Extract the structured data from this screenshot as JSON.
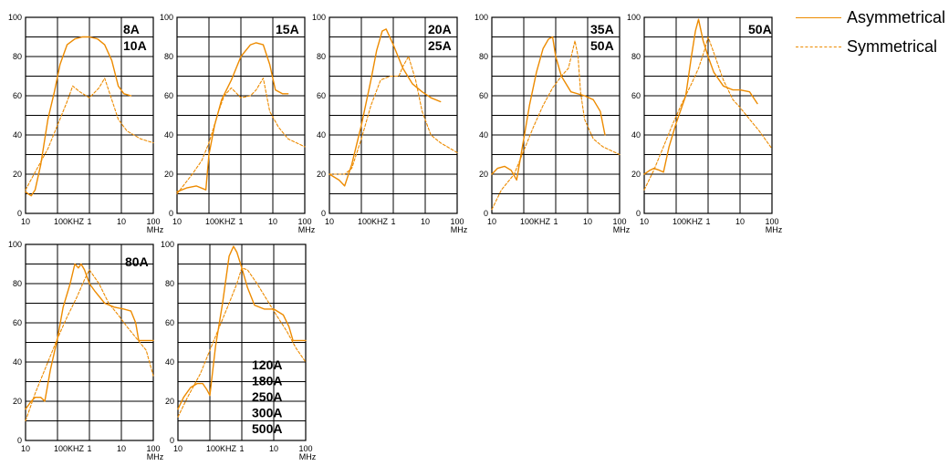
{
  "colors": {
    "asymmetrical": "#ED8B00",
    "symmetrical": "#ED8B00",
    "grid": "#000000"
  },
  "legend": {
    "asymmetrical_label": "Asymmetrical",
    "symmetrical_label": "Symmetrical"
  },
  "chart_data": [
    {
      "type": "line",
      "title": "",
      "labels": [
        "8A",
        "10A"
      ],
      "x_scale": "log",
      "x_ticks": [
        "10",
        "100KHZ",
        "1",
        "10",
        "100"
      ],
      "x_unit": "MHz",
      "y_ticks": [
        "0",
        "20",
        "40",
        "60",
        "80",
        "100"
      ],
      "ylim": [
        0,
        100
      ],
      "grid": true,
      "series": [
        {
          "name": "Asymmetrical",
          "style": "solid",
          "x": [
            0.01,
            0.012,
            0.015,
            0.02,
            0.03,
            0.05,
            0.08,
            0.12,
            0.2,
            0.35,
            0.6,
            1,
            1.8,
            3,
            5,
            8,
            12,
            20
          ],
          "y": [
            11,
            10,
            9,
            12,
            25,
            48,
            62,
            76,
            86,
            89,
            90,
            90,
            89,
            86,
            78,
            65,
            61,
            60
          ]
        },
        {
          "name": "Symmetrical",
          "style": "dashed",
          "x": [
            0.01,
            0.02,
            0.05,
            0.1,
            0.2,
            0.3,
            0.5,
            1,
            2,
            3,
            5,
            8,
            15,
            40,
            100
          ],
          "y": [
            12,
            21,
            33,
            45,
            57,
            65,
            62,
            59,
            64,
            69,
            58,
            48,
            42,
            38,
            36
          ]
        }
      ]
    },
    {
      "type": "line",
      "title": "",
      "labels": [
        "15A"
      ],
      "x_scale": "log",
      "x_ticks": [
        "10",
        "100KHZ",
        "1",
        "10",
        "100"
      ],
      "x_unit": "MHz",
      "y_ticks": [
        "0",
        "20",
        "40",
        "60",
        "80",
        "100"
      ],
      "ylim": [
        0,
        100
      ],
      "grid": true,
      "series": [
        {
          "name": "Asymmetrical",
          "style": "solid",
          "x": [
            0.01,
            0.02,
            0.04,
            0.08,
            0.1,
            0.15,
            0.25,
            0.5,
            1,
            2,
            3,
            5,
            8,
            12,
            20,
            30
          ],
          "y": [
            11,
            13,
            14,
            12,
            30,
            45,
            58,
            68,
            80,
            86,
            87,
            86,
            76,
            63,
            61,
            61
          ]
        },
        {
          "name": "Symmetrical",
          "style": "dashed",
          "x": [
            0.01,
            0.03,
            0.06,
            0.1,
            0.2,
            0.3,
            0.5,
            1,
            2,
            3,
            5,
            8,
            15,
            30,
            100
          ],
          "y": [
            10,
            20,
            27,
            36,
            52,
            60,
            64,
            59,
            60,
            63,
            69,
            52,
            44,
            38,
            34
          ]
        }
      ]
    },
    {
      "type": "line",
      "title": "",
      "labels": [
        "20A",
        "25A"
      ],
      "x_scale": "log",
      "x_ticks": [
        "10",
        "100KHZ",
        "1",
        "10",
        "100"
      ],
      "x_unit": "MHz",
      "y_ticks": [
        "0",
        "20",
        "40",
        "60",
        "80",
        "100"
      ],
      "ylim": [
        0,
        100
      ],
      "grid": true,
      "series": [
        {
          "name": "Asymmetrical",
          "style": "solid",
          "x": [
            0.01,
            0.02,
            0.03,
            0.05,
            0.1,
            0.2,
            0.3,
            0.45,
            0.6,
            1,
            2,
            4,
            8,
            15,
            30
          ],
          "y": [
            20,
            17,
            14,
            25,
            45,
            68,
            83,
            93,
            94,
            86,
            74,
            66,
            62,
            59,
            57
          ]
        },
        {
          "name": "Symmetrical",
          "style": "dashed",
          "x": [
            0.01,
            0.03,
            0.05,
            0.1,
            0.2,
            0.4,
            0.8,
            1.5,
            2,
            3,
            5,
            8,
            15,
            30,
            100
          ],
          "y": [
            20,
            20,
            23,
            38,
            55,
            68,
            70,
            70,
            75,
            80,
            68,
            52,
            40,
            36,
            31
          ]
        }
      ]
    },
    {
      "type": "line",
      "title": "",
      "labels": [
        "35A",
        "50A"
      ],
      "x_scale": "log",
      "x_ticks": [
        "10",
        "100KHZ",
        "1",
        "10",
        "100"
      ],
      "x_unit": "MHz",
      "y_ticks": [
        "0",
        "20",
        "40",
        "60",
        "80",
        "100"
      ],
      "ylim": [
        0,
        100
      ],
      "grid": true,
      "series": [
        {
          "name": "Asymmetrical",
          "style": "solid",
          "x": [
            0.01,
            0.015,
            0.025,
            0.04,
            0.06,
            0.1,
            0.15,
            0.25,
            0.4,
            0.6,
            0.8,
            1,
            1.5,
            3,
            8,
            15,
            25,
            35
          ],
          "y": [
            20,
            23,
            24,
            22,
            17,
            38,
            55,
            72,
            84,
            89,
            90,
            80,
            70,
            62,
            60,
            58,
            52,
            40
          ]
        },
        {
          "name": "Symmetrical",
          "style": "dashed",
          "x": [
            0.01,
            0.02,
            0.05,
            0.1,
            0.2,
            0.4,
            0.8,
            1.5,
            2.5,
            4,
            5,
            6,
            8,
            15,
            30,
            100
          ],
          "y": [
            2,
            12,
            20,
            32,
            44,
            55,
            64,
            70,
            74,
            88,
            80,
            62,
            48,
            38,
            34,
            30
          ]
        }
      ]
    },
    {
      "type": "line",
      "title": "",
      "labels": [
        "50A"
      ],
      "x_scale": "log",
      "x_ticks": [
        "10",
        "100KHZ",
        "1",
        "10",
        "100"
      ],
      "x_unit": "MHz",
      "y_ticks": [
        "0",
        "20",
        "40",
        "60",
        "80",
        "100"
      ],
      "ylim": [
        0,
        100
      ],
      "grid": true,
      "series": [
        {
          "name": "Asymmetrical",
          "style": "solid",
          "x": [
            0.01,
            0.015,
            0.02,
            0.03,
            0.04,
            0.06,
            0.1,
            0.2,
            0.3,
            0.4,
            0.5,
            0.7,
            1,
            1.5,
            3,
            6,
            10,
            20,
            35
          ],
          "y": [
            20,
            22,
            23,
            22,
            21,
            34,
            46,
            60,
            80,
            93,
            99,
            88,
            80,
            72,
            65,
            63,
            63,
            62,
            56
          ]
        },
        {
          "name": "Symmetrical",
          "style": "dashed",
          "x": [
            0.01,
            0.02,
            0.04,
            0.08,
            0.15,
            0.3,
            0.5,
            0.8,
            1,
            1.5,
            3,
            6,
            10,
            20,
            40,
            100
          ],
          "y": [
            12,
            22,
            34,
            46,
            56,
            66,
            74,
            84,
            90,
            82,
            68,
            58,
            54,
            48,
            42,
            33
          ]
        }
      ]
    },
    {
      "type": "line",
      "title": "",
      "labels": [
        "80A"
      ],
      "x_scale": "log",
      "x_ticks": [
        "10",
        "100KHZ",
        "1",
        "10",
        "100"
      ],
      "x_unit": "MHz",
      "y_ticks": [
        "0",
        "20",
        "40",
        "60",
        "80",
        "100"
      ],
      "ylim": [
        0,
        100
      ],
      "grid": true,
      "series": [
        {
          "name": "Asymmetrical",
          "style": "solid",
          "x": [
            0.01,
            0.015,
            0.02,
            0.03,
            0.04,
            0.06,
            0.1,
            0.15,
            0.25,
            0.35,
            0.45,
            0.55,
            0.7,
            1,
            1.5,
            3,
            6,
            12,
            20,
            28,
            35,
            100
          ],
          "y": [
            16,
            20,
            22,
            22,
            20,
            36,
            52,
            68,
            80,
            90,
            88,
            90,
            87,
            80,
            76,
            70,
            68,
            67,
            66,
            60,
            51,
            51
          ]
        },
        {
          "name": "Symmetrical",
          "style": "dashed",
          "x": [
            0.01,
            0.02,
            0.05,
            0.1,
            0.2,
            0.4,
            0.7,
            1,
            2,
            4,
            8,
            15,
            30,
            60,
            100
          ],
          "y": [
            10,
            24,
            40,
            52,
            63,
            73,
            82,
            87,
            80,
            70,
            64,
            58,
            52,
            46,
            33
          ]
        }
      ]
    },
    {
      "type": "line",
      "title": "",
      "labels": [
        "120A",
        "180A",
        "250A",
        "300A",
        "500A"
      ],
      "x_scale": "log",
      "x_ticks": [
        "10",
        "100KHZ",
        "1",
        "10",
        "100"
      ],
      "x_unit": "MHz",
      "y_ticks": [
        "0",
        "20",
        "40",
        "60",
        "80",
        "100"
      ],
      "ylim": [
        0,
        100
      ],
      "grid": true,
      "series": [
        {
          "name": "Asymmetrical",
          "style": "solid",
          "x": [
            0.01,
            0.015,
            0.025,
            0.04,
            0.06,
            0.08,
            0.1,
            0.15,
            0.25,
            0.4,
            0.55,
            0.7,
            1,
            1.5,
            2.5,
            5,
            10,
            20,
            30,
            40,
            100
          ],
          "y": [
            16,
            22,
            27,
            29,
            29,
            26,
            23,
            48,
            70,
            94,
            99,
            96,
            88,
            78,
            69,
            67,
            67,
            64,
            58,
            51,
            51
          ]
        },
        {
          "name": "Symmetrical",
          "style": "dashed",
          "x": [
            0.01,
            0.02,
            0.05,
            0.1,
            0.2,
            0.4,
            0.7,
            1,
            1.5,
            3,
            6,
            12,
            25,
            50,
            100
          ],
          "y": [
            12,
            22,
            34,
            46,
            58,
            70,
            80,
            88,
            87,
            80,
            72,
            64,
            56,
            47,
            40
          ]
        }
      ]
    }
  ]
}
